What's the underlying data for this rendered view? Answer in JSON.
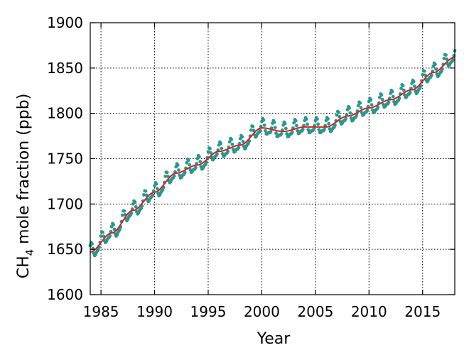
{
  "chart_data": {
    "type": "line",
    "xlabel": "Year",
    "ylabel": "CH4 mole fraction (ppb)",
    "ylabel_parts": {
      "base": "CH",
      "sub": "4",
      "rest": " mole fraction (ppb)"
    },
    "xlim": [
      1984,
      2018
    ],
    "ylim": [
      1600,
      1900
    ],
    "x_ticks": [
      1985,
      1990,
      1995,
      2000,
      2005,
      2010,
      2015
    ],
    "x_tick_labels": [
      "1985",
      "1990",
      "1995",
      "2000",
      "2005",
      "2010",
      "2015"
    ],
    "y_ticks": [
      1600,
      1650,
      1700,
      1750,
      1800,
      1850,
      1900
    ],
    "y_tick_labels": [
      "1600",
      "1650",
      "1700",
      "1750",
      "1800",
      "1850",
      "1900"
    ],
    "grid": true,
    "legend": "none",
    "series": [
      {
        "kind": "monthly-points",
        "color": "#2e958e",
        "trend_anchor": {
          "x": [
            1984,
            1986,
            1988,
            1990,
            1992,
            1994,
            1996,
            1998,
            2000,
            2002,
            2004,
            2006,
            2008,
            2010,
            2012,
            2014,
            2016,
            2018
          ],
          "y": [
            1647,
            1668,
            1693,
            1713,
            1734,
            1743,
            1758,
            1765,
            1784,
            1780,
            1785,
            1785,
            1797,
            1806,
            1815,
            1826,
            1845,
            1862
          ]
        },
        "seasonal_amplitude_ppb": 10
      },
      {
        "kind": "deseasonalized-trend",
        "color": "#cc2222",
        "x": [
          1984,
          1986,
          1988,
          1990,
          1992,
          1994,
          1996,
          1998,
          2000,
          2002,
          2004,
          2006,
          2008,
          2010,
          2012,
          2014,
          2016,
          2018
        ],
        "y": [
          1647,
          1668,
          1693,
          1713,
          1734,
          1743,
          1758,
          1765,
          1784,
          1780,
          1785,
          1785,
          1797,
          1806,
          1815,
          1826,
          1845,
          1862
        ]
      }
    ]
  }
}
